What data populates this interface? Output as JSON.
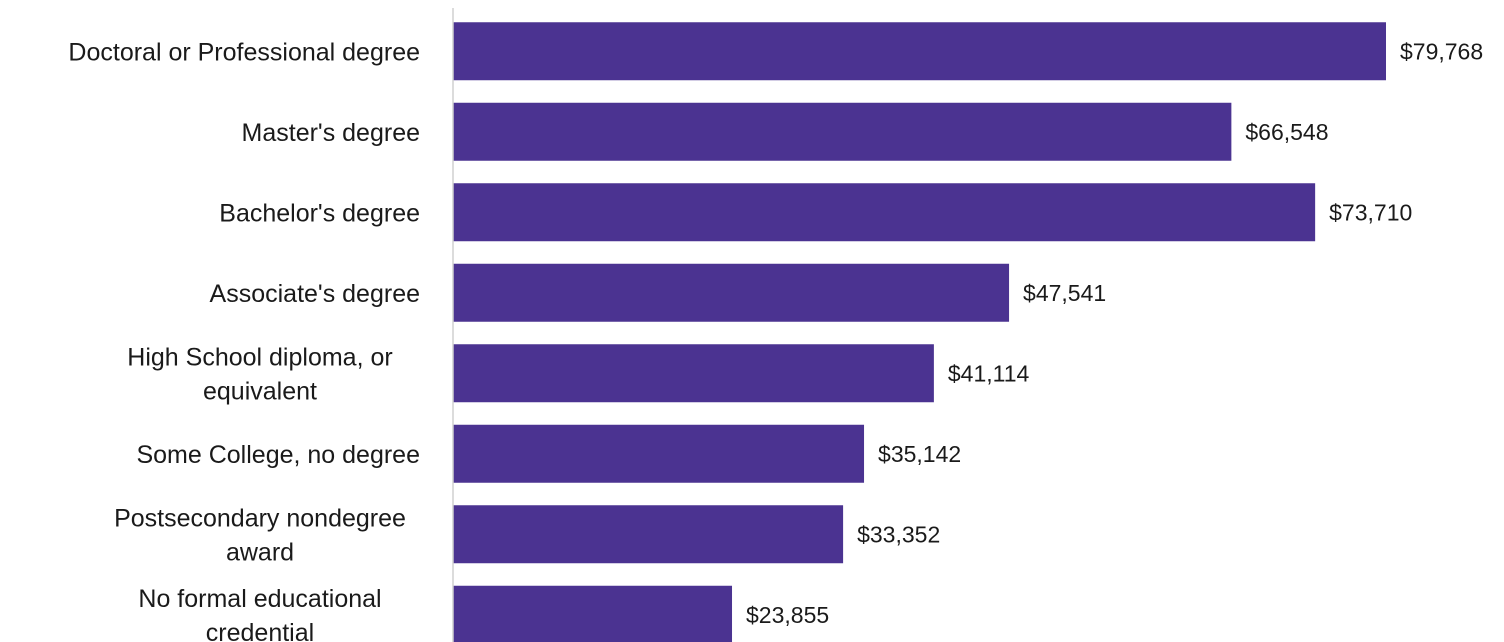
{
  "chart_data": {
    "type": "bar",
    "orientation": "horizontal",
    "categories": [
      "Doctoral or Professional degree",
      "Master's degree",
      "Bachelor's degree",
      "Associate's degree",
      "High School diploma, or equivalent",
      "Some College, no degree",
      "Postsecondary nondegree award",
      "No formal educational credential"
    ],
    "category_lines": [
      [
        "Doctoral or Professional degree"
      ],
      [
        "Master's degree"
      ],
      [
        "Bachelor's degree"
      ],
      [
        "Associate's degree"
      ],
      [
        "High School diploma, or",
        "equivalent"
      ],
      [
        "Some College, no degree"
      ],
      [
        "Postsecondary nondegree",
        "award"
      ],
      [
        "No formal educational",
        "credential"
      ]
    ],
    "values": [
      79768,
      66548,
      73710,
      47541,
      41114,
      35142,
      33352,
      23855
    ],
    "value_labels": [
      "$79,768",
      "$66,548",
      "$73,710",
      "$47,541",
      "$41,114",
      "$35,142",
      "$33,352",
      "$23,855"
    ],
    "xlim": [
      0,
      85000
    ],
    "bar_color": "#4b3391",
    "axis_color": "#d0d0d0",
    "legend": "none",
    "grid": false
  }
}
